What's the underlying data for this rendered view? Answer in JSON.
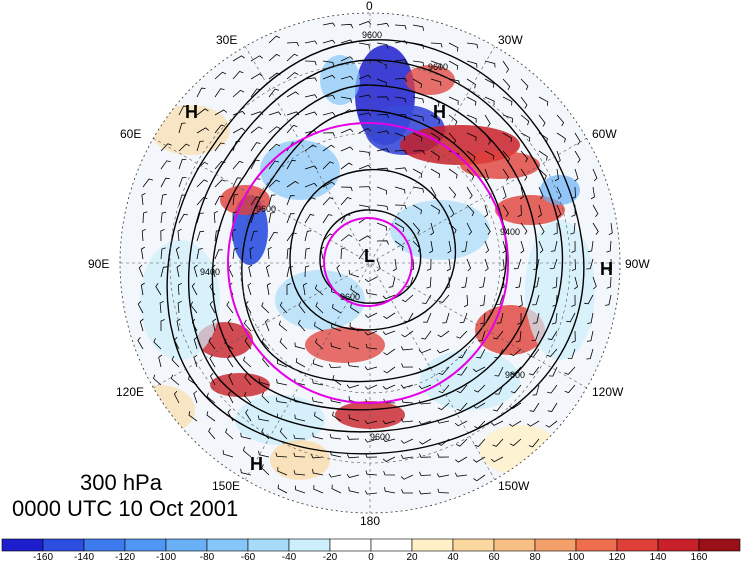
{
  "header": {
    "level": "300 hPa",
    "time": "0000 UTC 10 Oct 2001"
  },
  "map": {
    "projection": "north polar stereographic",
    "longitude_labels": [
      "0",
      "30W",
      "60W",
      "90W",
      "120W",
      "150W",
      "180",
      "150E",
      "120E",
      "90E",
      "60E",
      "30E"
    ],
    "contour_label": "9600",
    "contour_label_alt": "9400",
    "pressure_centers": [
      {
        "label": "H",
        "name": "high-north-atlantic"
      },
      {
        "label": "H",
        "name": "high-europe"
      },
      {
        "label": "H",
        "name": "high-north-america"
      },
      {
        "label": "H",
        "name": "high-pacific"
      },
      {
        "label": "L",
        "name": "low-pole"
      }
    ],
    "magenta_circles": 2,
    "colors": {
      "contour": "#000000",
      "circle": "#e600e6",
      "grid": "#555555"
    }
  },
  "colorbar": {
    "ticks": [
      "-160",
      "-140",
      "-120",
      "-100",
      "-80",
      "-60",
      "-40",
      "-20",
      "0",
      "20",
      "40",
      "60",
      "80",
      "100",
      "120",
      "140",
      "160"
    ],
    "colors": [
      "#1e1ecc",
      "#2c4fe0",
      "#3c7aee",
      "#5096f5",
      "#6ab0f7",
      "#86c6f8",
      "#a8dbf9",
      "#cdeefb",
      "#ffffff",
      "#fff0c8",
      "#fbd8a0",
      "#f8bf84",
      "#f4a06a",
      "#ee6e4e",
      "#e0403a",
      "#c82028",
      "#9a1018"
    ]
  }
}
